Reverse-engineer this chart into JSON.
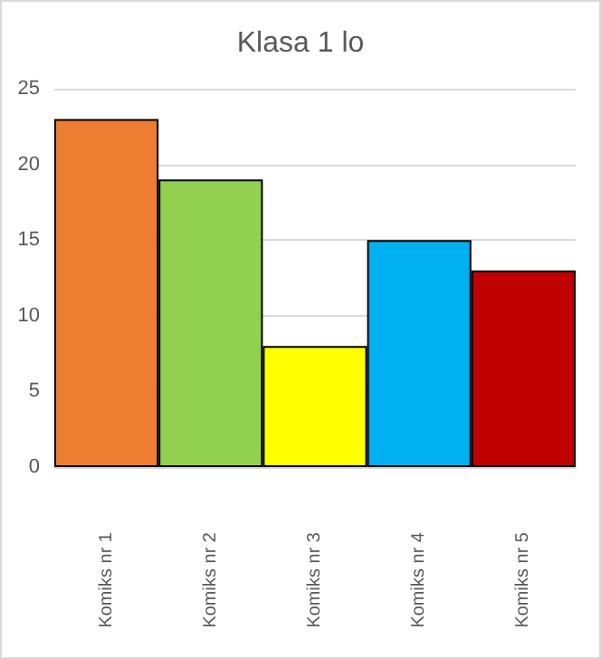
{
  "chart_data": {
    "type": "bar",
    "title": "Klasa 1 lo",
    "categories": [
      "Komiks nr 1",
      "Komiks nr 2",
      "Komiks nr 3",
      "Komiks nr 4",
      "Komiks nr 5"
    ],
    "values": [
      23,
      19,
      8,
      15,
      13
    ],
    "colors": [
      "#ed7d31",
      "#92d050",
      "#ffff00",
      "#00b0f0",
      "#c00000"
    ],
    "ylim": [
      0,
      25
    ],
    "yticks": [
      0,
      5,
      10,
      15,
      20,
      25
    ],
    "grid": "y"
  }
}
